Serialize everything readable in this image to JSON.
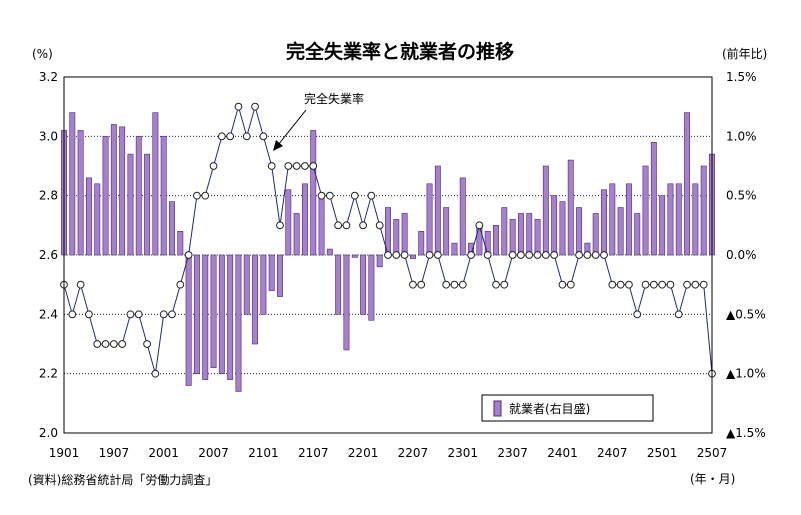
{
  "chart_data": {
    "type": "bar+line",
    "title": "完全失業率と就業者の推移",
    "y_left_unit": "(%)",
    "y_right_unit": "(前年比)",
    "x_unit": "(年・月)",
    "source": "(資料)総務省統計局「労働力調査」",
    "line_annotation": "完全失業率",
    "legend_label": "就業者(右目盛)",
    "colors": {
      "bar_fill": "#a77fcf",
      "bar_stroke": "#4b2a6f",
      "line": "#1f2b78",
      "marker_fill": "#ffffff",
      "grid": "#000000"
    },
    "y_left": {
      "min": 2.0,
      "max": 3.2,
      "ticks": [
        "2.0",
        "2.2",
        "2.4",
        "2.6",
        "2.8",
        "3.0",
        "3.2"
      ]
    },
    "y_right": {
      "min": -1.5,
      "max": 1.5,
      "ticks": [
        "▲1.5%",
        "▲1.0%",
        "▲0.5%",
        "0.0%",
        "0.5%",
        "1.0%",
        "1.5%"
      ]
    },
    "x_tick_labels": [
      "1901",
      "1907",
      "2001",
      "2007",
      "2101",
      "2107",
      "2201",
      "2207",
      "2301",
      "2307",
      "2401",
      "2407",
      "2501",
      "2507"
    ],
    "x": [
      "1901",
      "1902",
      "1903",
      "1904",
      "1905",
      "1906",
      "1907",
      "1908",
      "1909",
      "1910",
      "1911",
      "1912",
      "2001",
      "2002",
      "2003",
      "2004",
      "2005",
      "2006",
      "2007",
      "2008",
      "2009",
      "2010",
      "2011",
      "2012",
      "2101",
      "2102",
      "2103",
      "2104",
      "2105",
      "2106",
      "2107",
      "2108",
      "2109",
      "2110",
      "2111",
      "2112",
      "2201",
      "2202",
      "2203",
      "2204",
      "2205",
      "2206",
      "2207",
      "2208",
      "2209",
      "2210",
      "2211",
      "2212",
      "2301",
      "2302",
      "2303",
      "2304",
      "2305",
      "2306",
      "2307",
      "2308",
      "2309",
      "2310",
      "2311",
      "2312",
      "2401",
      "2402",
      "2403",
      "2404",
      "2405",
      "2406",
      "2407",
      "2408",
      "2409",
      "2410",
      "2411",
      "2412",
      "2501",
      "2502",
      "2503",
      "2504",
      "2505",
      "2506",
      "2507"
    ],
    "series": [
      {
        "name": "完全失業率",
        "axis": "left",
        "type": "line",
        "values": [
          2.5,
          2.4,
          2.5,
          2.4,
          2.3,
          2.3,
          2.3,
          2.3,
          2.4,
          2.4,
          2.3,
          2.2,
          2.4,
          2.4,
          2.5,
          2.6,
          2.8,
          2.8,
          2.9,
          3.0,
          3.0,
          3.1,
          3.0,
          3.1,
          3.0,
          2.9,
          2.7,
          2.9,
          2.9,
          2.9,
          2.9,
          2.8,
          2.8,
          2.7,
          2.7,
          2.8,
          2.7,
          2.8,
          2.7,
          2.6,
          2.6,
          2.6,
          2.5,
          2.5,
          2.6,
          2.6,
          2.5,
          2.5,
          2.5,
          2.6,
          2.7,
          2.6,
          2.5,
          2.5,
          2.6,
          2.6,
          2.6,
          2.6,
          2.6,
          2.6,
          2.5,
          2.5,
          2.6,
          2.6,
          2.6,
          2.6,
          2.5,
          2.5,
          2.5,
          2.4,
          2.5,
          2.5,
          2.5,
          2.5,
          2.4,
          2.5,
          2.5,
          2.5,
          2.2
        ]
      },
      {
        "name": "就業者(右目盛)",
        "axis": "right",
        "type": "bar",
        "values": [
          1.05,
          1.2,
          1.05,
          0.65,
          0.6,
          1.0,
          1.1,
          1.08,
          0.85,
          1.0,
          0.85,
          1.2,
          1.0,
          0.45,
          0.2,
          -1.1,
          -1.0,
          -1.05,
          -0.95,
          -1.0,
          -1.05,
          -1.15,
          -0.5,
          -0.75,
          -0.5,
          -0.3,
          -0.35,
          0.55,
          0.35,
          0.6,
          1.05,
          0.5,
          0.05,
          -0.5,
          -0.8,
          -0.02,
          -0.5,
          -0.55,
          -0.1,
          0.4,
          0.3,
          0.35,
          -0.03,
          0.2,
          0.6,
          0.75,
          0.4,
          0.1,
          0.65,
          0.1,
          0.25,
          0.2,
          0.25,
          0.4,
          0.3,
          0.35,
          0.35,
          0.3,
          0.75,
          0.5,
          0.45,
          0.8,
          0.4,
          0.1,
          0.35,
          0.55,
          0.6,
          0.4,
          0.6,
          0.35,
          0.75,
          0.95,
          0.5,
          0.6,
          0.6,
          1.2,
          0.6,
          0.75,
          0.85
        ]
      }
    ]
  }
}
